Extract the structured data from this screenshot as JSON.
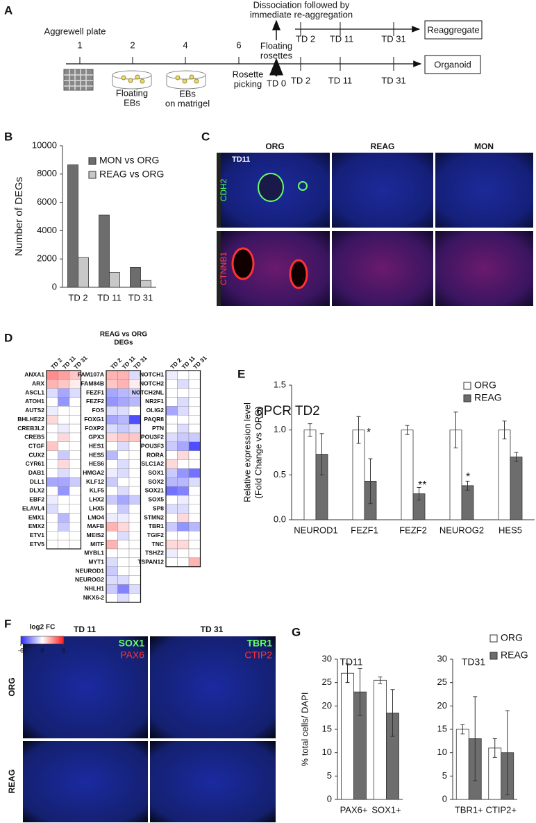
{
  "panel_labels": [
    "A",
    "B",
    "C",
    "D",
    "E",
    "F",
    "G"
  ],
  "schematic": {
    "aggrewell": "Aggrewell plate",
    "steps": [
      "1",
      "2",
      "4",
      "6"
    ],
    "floating_ebs": [
      "Floating",
      "EBs"
    ],
    "ebs_matrigel": [
      "EBs",
      "on matrigel"
    ],
    "rosette_picking": [
      "Rosette",
      "picking"
    ],
    "td0": "TD 0",
    "floating_rosettes": [
      "Floating",
      "rosettes"
    ],
    "dissociation": [
      "Dissociation followed by",
      "immediate re-aggregation"
    ],
    "organoid_timepoints": [
      "TD 2",
      "TD 11",
      "TD 31"
    ],
    "reaggregate_timepoints": [
      "TD 2",
      "TD 11",
      "TD 31"
    ],
    "organoid": "Organoid",
    "reaggregate": "Reaggregate"
  },
  "panel_c": {
    "columns": [
      "ORG",
      "REAG",
      "MON"
    ],
    "rows": [
      "CDH2",
      "CTNNB1"
    ],
    "inset": "TD11"
  },
  "panel_f": {
    "columns": [
      "TD 11",
      "TD 31"
    ],
    "rows": [
      "ORG",
      "REAG"
    ],
    "stains": [
      [
        "SOX1",
        "PAX6"
      ],
      [
        "TBR1",
        "CTIP2"
      ]
    ]
  },
  "chart_data": [
    {
      "type": "bar",
      "ylabel": "Number of DEGs",
      "categories": [
        "TD 2",
        "TD 11",
        "TD 31"
      ],
      "series": [
        {
          "name": "MON vs ORG",
          "color": "#6d6d6d",
          "values": [
            8650,
            5100,
            1400
          ]
        },
        {
          "name": "REAG vs ORG",
          "color": "#c8c8c8",
          "values": [
            2100,
            1050,
            480
          ]
        }
      ],
      "ylim": [
        0,
        10000
      ],
      "yticks": [
        0,
        2000,
        4000,
        6000,
        8000,
        10000
      ]
    },
    {
      "type": "bar",
      "title": "qPCR TD2",
      "ylabel": [
        "Relative expression level",
        "(Fold Change vs ORG)"
      ],
      "categories": [
        "NEUROD1",
        "FEZF1",
        "FEZF2",
        "NEUROG2",
        "HES5"
      ],
      "series": [
        {
          "name": "ORG",
          "color": "#ffffff",
          "values": [
            1.0,
            1.0,
            1.0,
            1.0,
            1.0
          ],
          "errors": [
            0.07,
            0.15,
            0.05,
            0.2,
            0.1
          ]
        },
        {
          "name": "REAG",
          "color": "#6d6d6d",
          "values": [
            0.73,
            0.43,
            0.29,
            0.38,
            0.7
          ],
          "errors": [
            0.23,
            0.25,
            0.07,
            0.05,
            0.05
          ]
        }
      ],
      "ylim": [
        0,
        1.5
      ],
      "yticks": [
        {
          "value": 0,
          "label": "0.0"
        },
        {
          "value": 0.5,
          "label": "0.5"
        },
        {
          "value": 1,
          "label": "1.0"
        },
        {
          "value": 1.5,
          "label": "1.5"
        }
      ],
      "annotations": [
        "*",
        "**",
        "*"
      ]
    },
    {
      "type": "bar",
      "title": "TD11",
      "ylabel": "% total cells/ DAPI",
      "categories": [
        "PAX6+",
        "SOX1+"
      ],
      "series": [
        {
          "name": "ORG",
          "color": "#ffffff",
          "values": [
            27,
            25.5
          ],
          "errors": [
            2,
            0.7
          ]
        },
        {
          "name": "REAG",
          "color": "#6d6d6d",
          "values": [
            23,
            18.5
          ],
          "errors": [
            5,
            5
          ]
        }
      ],
      "ylim": [
        0,
        30
      ],
      "yticks": [
        0,
        5,
        10,
        15,
        20,
        25,
        30
      ]
    },
    {
      "type": "bar",
      "title": "TD31",
      "categories": [
        "TBR1+",
        "CTIP2+"
      ],
      "series": [
        {
          "name": "ORG",
          "color": "#ffffff",
          "values": [
            15,
            11
          ],
          "errors": [
            1,
            2
          ]
        },
        {
          "name": "REAG",
          "color": "#6d6d6d",
          "values": [
            13,
            10
          ],
          "errors": [
            9,
            9
          ]
        }
      ],
      "ylim": [
        0,
        30
      ],
      "yticks": [
        0,
        5,
        10,
        15,
        20,
        25,
        30
      ]
    }
  ],
  "heatmap": {
    "type": "heatmap",
    "title": [
      "REAG vs ORG",
      "DEGs"
    ],
    "timepoints": [
      "TD 2",
      "TD 11",
      "TD 31"
    ],
    "colorbar": {
      "label": "log2 FC",
      "lim": [
        -6,
        6
      ],
      "ticks": [
        -6,
        0,
        6
      ]
    },
    "columns": [
      {
        "genes": [
          "ANXA1",
          "ARX",
          "ASCL1",
          "ATOH1",
          "AUTS2",
          "BHLHE22",
          "CREB3L2",
          "CREB5",
          "CTGF",
          "CUX2",
          "CYR61",
          "DAB1",
          "DLL1",
          "DLX2",
          "EBF2",
          "ELAVL4",
          "EMX1",
          "EMX2",
          "ETV1",
          "ETV5"
        ],
        "values": [
          [
            3,
            2.5,
            1.5
          ],
          [
            2,
            1.5,
            0.5
          ],
          [
            -1,
            -2.5,
            -1
          ],
          [
            0,
            -3,
            0
          ],
          [
            -0.5,
            0,
            0
          ],
          [
            1,
            0,
            0
          ],
          [
            0,
            -0.5,
            0
          ],
          [
            0,
            1,
            0
          ],
          [
            1.5,
            0,
            0
          ],
          [
            0,
            -1.5,
            0
          ],
          [
            0,
            1,
            0
          ],
          [
            0,
            -1,
            0
          ],
          [
            -2.5,
            -2.5,
            -1.5
          ],
          [
            0,
            -3,
            0
          ],
          [
            -0.5,
            0,
            0
          ],
          [
            -1,
            0,
            0
          ],
          [
            0,
            -2,
            0
          ],
          [
            0,
            -1.5,
            0
          ],
          [
            0,
            0,
            0
          ],
          [
            0,
            0,
            0
          ]
        ]
      },
      {
        "genes": [
          "FAM107A",
          "FAM84B",
          "FEZF1",
          "FEZF2",
          "FOS",
          "FOXG1",
          "FOXP2",
          "GPX3",
          "HES1",
          "HES5",
          "HES6",
          "HMGA2",
          "KLF12",
          "KLF5",
          "LHX2",
          "LHX5",
          "LMO4",
          "MAFB",
          "MEIS2",
          "MITF",
          "MYBL1",
          "MYT1",
          "NEUROD1",
          "NEUROG2",
          "NHLH1",
          "NKX6-2"
        ],
        "values": [
          [
            2,
            2,
            -1
          ],
          [
            1.5,
            2,
            0.5
          ],
          [
            -2.5,
            -2,
            -1.5
          ],
          [
            -3,
            -2.5,
            -2
          ],
          [
            -1,
            -1,
            0
          ],
          [
            -2.5,
            -2,
            -5
          ],
          [
            -1,
            -1.5,
            -1
          ],
          [
            1,
            1.5,
            1.5
          ],
          [
            0,
            -1,
            0
          ],
          [
            -2,
            0,
            0
          ],
          [
            0,
            -1,
            0
          ],
          [
            -0.5,
            -1,
            0
          ],
          [
            -1.5,
            0,
            0
          ],
          [
            0,
            -1,
            0
          ],
          [
            -1.5,
            -2.5,
            -1.5
          ],
          [
            0,
            -1.5,
            0
          ],
          [
            -0.5,
            -0.5,
            0
          ],
          [
            2,
            1,
            0
          ],
          [
            0,
            -1,
            0
          ],
          [
            2,
            0,
            0
          ],
          [
            0,
            0,
            0
          ],
          [
            -1,
            0,
            0
          ],
          [
            -1.5,
            0,
            0
          ],
          [
            -1,
            -1,
            0
          ],
          [
            -1.5,
            -3.5,
            -1
          ],
          [
            0,
            -1,
            0
          ]
        ]
      },
      {
        "genes": [
          "NOTCH1",
          "NOTCH2",
          "NOTCH2NL",
          "NR2F1",
          "OLIG2",
          "PAQR8",
          "PTN",
          "POU3F2",
          "POU3F3",
          "RORA",
          "SLC1A2",
          "SOX1",
          "SOX2",
          "SOX21",
          "SOX5",
          "SP8",
          "STMN2",
          "TBR1",
          "TGIF2",
          "TNC",
          "TSHZ2",
          "TSPAN12"
        ],
        "values": [
          [
            -0.5,
            0,
            0
          ],
          [
            0,
            -1,
            0
          ],
          [
            0,
            0,
            0
          ],
          [
            0,
            -1,
            0
          ],
          [
            -2.5,
            -1,
            0
          ],
          [
            0,
            0,
            0
          ],
          [
            0,
            -1,
            0
          ],
          [
            -1,
            -1.5,
            -1.5
          ],
          [
            -1.5,
            -2.5,
            -5
          ],
          [
            0,
            1,
            0
          ],
          [
            1,
            0,
            0
          ],
          [
            -1.5,
            -3,
            -4
          ],
          [
            -2,
            -2,
            -1
          ],
          [
            -4,
            -3.5,
            0
          ],
          [
            0,
            -0.5,
            0
          ],
          [
            -1,
            -1,
            0
          ],
          [
            0,
            1,
            0
          ],
          [
            -1.5,
            -3,
            -2
          ],
          [
            0,
            0,
            0
          ],
          [
            1,
            1,
            0
          ],
          [
            -0.5,
            0,
            0
          ],
          [
            0,
            0,
            2
          ]
        ]
      }
    ]
  }
}
